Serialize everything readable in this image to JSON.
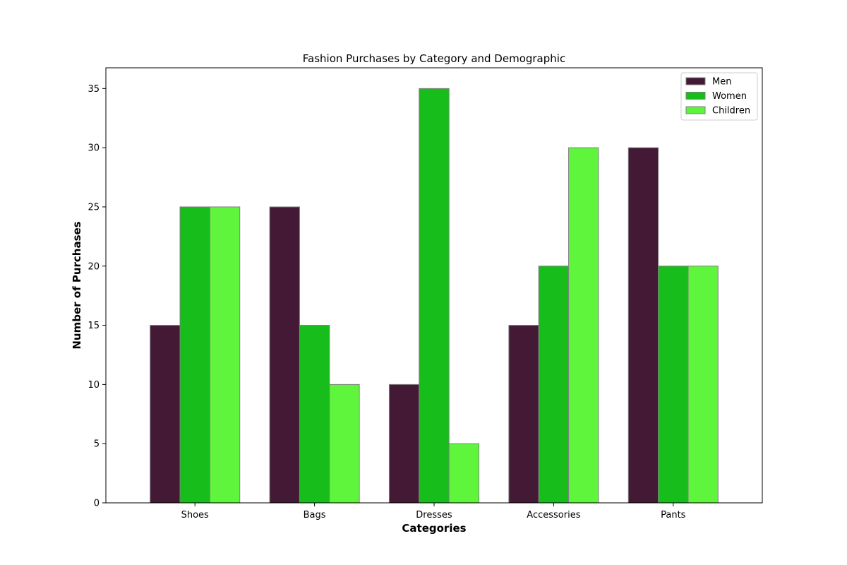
{
  "chart_data": {
    "type": "bar",
    "title": "Fashion Purchases by Category and Demographic",
    "xlabel": "Categories",
    "ylabel": "Number of Purchases",
    "categories": [
      "Shoes",
      "Bags",
      "Dresses",
      "Accessories",
      "Pants"
    ],
    "series": [
      {
        "name": "Men",
        "color": "#431935",
        "values": [
          15,
          25,
          10,
          15,
          30
        ]
      },
      {
        "name": "Women",
        "color": "#17bd1a",
        "values": [
          25,
          15,
          35,
          20,
          20
        ]
      },
      {
        "name": "Children",
        "color": "#5ff53c",
        "values": [
          25,
          10,
          5,
          30,
          20
        ]
      }
    ],
    "ylim": [
      0,
      36.75
    ],
    "yticks": [
      0,
      5,
      10,
      15,
      20,
      25,
      30,
      35
    ],
    "grid": false,
    "legend_position": "top-right",
    "bar_edge_color": "#808080"
  }
}
